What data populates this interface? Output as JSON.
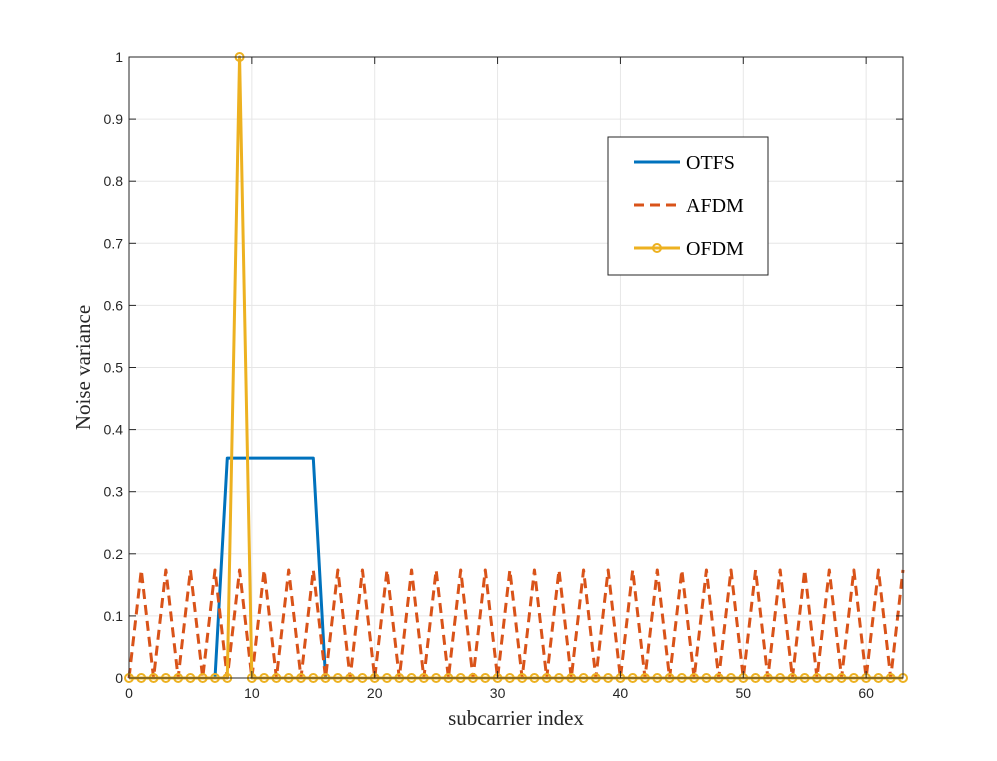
{
  "chart_data": {
    "type": "line",
    "xlabel": "subcarrier index",
    "ylabel": "Noise variance",
    "xlim": [
      0,
      63
    ],
    "ylim": [
      0,
      1
    ],
    "x_ticks": [
      0,
      10,
      20,
      30,
      40,
      50,
      60
    ],
    "y_ticks": [
      0,
      0.1,
      0.2,
      0.3,
      0.4,
      0.5,
      0.6,
      0.7,
      0.8,
      0.9,
      1
    ],
    "grid": true,
    "legend_position": "top-right",
    "series": [
      {
        "name": "OTFS",
        "color": "#0072BD",
        "style": "solid",
        "marker": "none",
        "x": [
          0,
          1,
          2,
          3,
          4,
          5,
          6,
          7,
          8,
          9,
          10,
          11,
          12,
          13,
          14,
          15,
          16,
          17,
          18,
          19,
          20,
          21,
          22,
          23,
          24,
          25,
          26,
          27,
          28,
          29,
          30,
          31,
          32,
          33,
          34,
          35,
          36,
          37,
          38,
          39,
          40,
          41,
          42,
          43,
          44,
          45,
          46,
          47,
          48,
          49,
          50,
          51,
          52,
          53,
          54,
          55,
          56,
          57,
          58,
          59,
          60,
          61,
          62,
          63
        ],
        "y": [
          0,
          0,
          0,
          0,
          0,
          0,
          0,
          0,
          0.354,
          0.354,
          0.354,
          0.354,
          0.354,
          0.354,
          0.354,
          0.354,
          0,
          0,
          0,
          0,
          0,
          0,
          0,
          0,
          0,
          0,
          0,
          0,
          0,
          0,
          0,
          0,
          0,
          0,
          0,
          0,
          0,
          0,
          0,
          0,
          0,
          0,
          0,
          0,
          0,
          0,
          0,
          0,
          0,
          0,
          0,
          0,
          0,
          0,
          0,
          0,
          0,
          0,
          0,
          0,
          0,
          0,
          0,
          0
        ]
      },
      {
        "name": "AFDM",
        "color": "#D95319",
        "style": "dashed",
        "marker": "none",
        "x": [
          0,
          1,
          2,
          3,
          4,
          5,
          6,
          7,
          8,
          9,
          10,
          11,
          12,
          13,
          14,
          15,
          16,
          17,
          18,
          19,
          20,
          21,
          22,
          23,
          24,
          25,
          26,
          27,
          28,
          29,
          30,
          31,
          32,
          33,
          34,
          35,
          36,
          37,
          38,
          39,
          40,
          41,
          42,
          43,
          44,
          45,
          46,
          47,
          48,
          49,
          50,
          51,
          52,
          53,
          54,
          55,
          56,
          57,
          58,
          59,
          60,
          61,
          62,
          63
        ],
        "y": [
          0,
          0.174,
          0,
          0.174,
          0,
          0.174,
          0,
          0.174,
          0,
          0.174,
          0,
          0.174,
          0,
          0.174,
          0,
          0.174,
          0,
          0.174,
          0,
          0.174,
          0,
          0.174,
          0,
          0.174,
          0,
          0.174,
          0,
          0.174,
          0,
          0.174,
          0,
          0.174,
          0,
          0.174,
          0,
          0.174,
          0,
          0.174,
          0,
          0.174,
          0,
          0.174,
          0,
          0.174,
          0,
          0.174,
          0,
          0.174,
          0,
          0.174,
          0,
          0.174,
          0,
          0.174,
          0,
          0.174,
          0,
          0.174,
          0,
          0.174,
          0,
          0.174,
          0,
          0.174
        ]
      },
      {
        "name": "OFDM",
        "color": "#EDB120",
        "style": "solid",
        "marker": "circle",
        "x": [
          0,
          1,
          2,
          3,
          4,
          5,
          6,
          7,
          8,
          9,
          10,
          11,
          12,
          13,
          14,
          15,
          16,
          17,
          18,
          19,
          20,
          21,
          22,
          23,
          24,
          25,
          26,
          27,
          28,
          29,
          30,
          31,
          32,
          33,
          34,
          35,
          36,
          37,
          38,
          39,
          40,
          41,
          42,
          43,
          44,
          45,
          46,
          47,
          48,
          49,
          50,
          51,
          52,
          53,
          54,
          55,
          56,
          57,
          58,
          59,
          60,
          61,
          62,
          63
        ],
        "y": [
          0,
          0,
          0,
          0,
          0,
          0,
          0,
          0,
          0,
          1,
          0,
          0,
          0,
          0,
          0,
          0,
          0,
          0,
          0,
          0,
          0,
          0,
          0,
          0,
          0,
          0,
          0,
          0,
          0,
          0,
          0,
          0,
          0,
          0,
          0,
          0,
          0,
          0,
          0,
          0,
          0,
          0,
          0,
          0,
          0,
          0,
          0,
          0,
          0,
          0,
          0,
          0,
          0,
          0,
          0,
          0,
          0,
          0,
          0,
          0,
          0,
          0,
          0,
          0
        ]
      }
    ]
  }
}
